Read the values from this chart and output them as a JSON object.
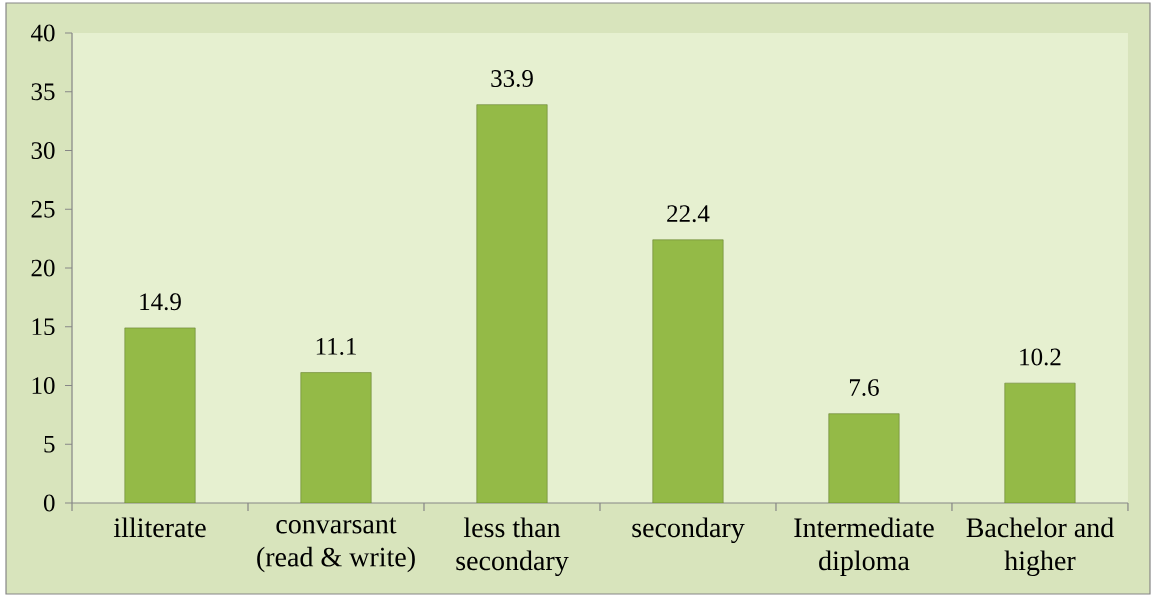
{
  "chart_data": {
    "type": "bar",
    "categories": [
      "illiterate",
      "convarsant (read & write)",
      "less than secondary",
      "secondary",
      "Intermediate diploma",
      "Bachelor and higher"
    ],
    "values": [
      14.9,
      11.1,
      33.9,
      22.4,
      7.6,
      10.2
    ],
    "color": "#94ba47",
    "ylim": [
      0,
      40
    ],
    "yticks": [
      0,
      5,
      10,
      15,
      20,
      25,
      30,
      35,
      40
    ],
    "data_labels": true
  }
}
